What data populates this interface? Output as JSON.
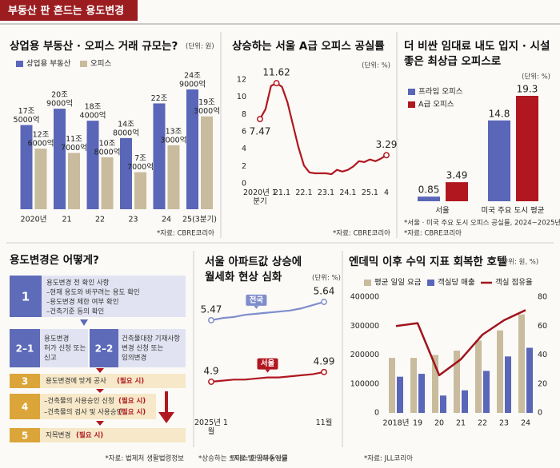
{
  "header": {
    "title": "부동산 판 흔드는 용도변경"
  },
  "chart_data": [
    {
      "type": "bar",
      "title": "상업용 부동산 · 오피스 거래 규모는?",
      "unit": "(단위: 원)",
      "categories": [
        "2020년",
        "21",
        "22",
        "23",
        "24",
        "25(3분기)"
      ],
      "series": [
        {
          "name": "상업용 부동산",
          "color": "#5a66b8",
          "values": [
            17.5,
            20.9,
            18.4,
            14.8,
            22,
            24.9
          ],
          "value_labels": [
            [
              "17조",
              "5000억"
            ],
            [
              "20조",
              "9000억"
            ],
            [
              "18조",
              "4000억"
            ],
            [
              "14조",
              "8000억"
            ],
            [
              "22조"
            ],
            [
              "24조",
              "9000억"
            ]
          ]
        },
        {
          "name": "오피스",
          "color": "#c9bb9d",
          "values": [
            12.6,
            11.7,
            10.8,
            7.7,
            13.3,
            19.3
          ],
          "value_labels": [
            [
              "12조",
              "6000억"
            ],
            [
              "11조",
              "7000억"
            ],
            [
              "10조",
              "8000억"
            ],
            [
              "7조",
              "7000억"
            ],
            [
              "13조",
              "3000억"
            ],
            [
              "19조",
              "3000억"
            ]
          ]
        }
      ],
      "source": "*자료: CBRE코리아"
    },
    {
      "type": "line",
      "title": "상승하는 서울 A급 오피스 공실률",
      "unit": "(단위: %)",
      "categories": [
        "2020년 1분기",
        null,
        null,
        null,
        "21.1",
        null,
        null,
        null,
        "22.1",
        null,
        null,
        null,
        "23.1",
        null,
        null,
        null,
        "24.1",
        null,
        null,
        null,
        "25.1",
        null,
        null,
        "4"
      ],
      "values": [
        7.47,
        8.6,
        11.3,
        11.62,
        11.2,
        9.4,
        6.8,
        4.2,
        2.1,
        1.3,
        1.2,
        1.2,
        1.2,
        1.1,
        1.6,
        1.4,
        1.6,
        2.0,
        2.6,
        2.5,
        2.8,
        2.6,
        2.9,
        3.29
      ],
      "value_labels": [
        "7.47",
        null,
        null,
        "11.62",
        null,
        null,
        null,
        null,
        null,
        null,
        null,
        null,
        null,
        null,
        null,
        null,
        null,
        null,
        null,
        null,
        null,
        null,
        null,
        "3.29"
      ],
      "color": "#b0171f",
      "ylim": [
        0,
        12
      ],
      "yticks": [
        0,
        2,
        4,
        6,
        8,
        10,
        12
      ],
      "source": "*자료: CBRE코리아"
    },
    {
      "type": "bar",
      "title": [
        "더 비싼 임대료 내도 입지 · 시설",
        "좋은 최상급 오피스로"
      ],
      "unit": "(단위: %)",
      "categories": [
        "서울",
        "미국 주요 도시 평균"
      ],
      "series": [
        {
          "name": "프라임 오피스",
          "color": "#5a66b8",
          "values": [
            0.85,
            14.8
          ]
        },
        {
          "name": "A급 오피스",
          "color": "#b0171f",
          "values": [
            3.49,
            19.3
          ]
        }
      ],
      "notes": [
        "*서울 · 미국 주요 도시 오피스 공실률, 2024~2025년",
        "*자료: CBRE코리아"
      ]
    },
    {
      "type": "line",
      "title": [
        "서울 아파트값 상승에",
        "월세화 현상 심화"
      ],
      "unit": "(단위: %)",
      "categories": [
        "2025년 1월",
        null,
        null,
        null,
        null,
        null,
        null,
        null,
        null,
        null,
        "11월"
      ],
      "series": [
        {
          "name": "전국",
          "color": "#7f8dcc",
          "values": [
            5.47,
            5.49,
            5.5,
            5.52,
            5.53,
            5.54,
            5.55,
            5.56,
            5.58,
            5.61,
            5.64
          ],
          "value_labels": [
            "5.47",
            null,
            null,
            null,
            null,
            null,
            null,
            null,
            null,
            null,
            "5.64"
          ]
        },
        {
          "name": "서울",
          "color": "#b0171f",
          "values": [
            4.9,
            4.91,
            4.92,
            4.92,
            4.93,
            4.94,
            4.94,
            4.95,
            4.96,
            4.97,
            4.99
          ],
          "value_labels": [
            "4.9",
            null,
            null,
            null,
            null,
            null,
            null,
            null,
            null,
            null,
            "4.99"
          ]
        }
      ],
      "note": "*상승하는 오피스텔 임대수익률",
      "source": "*자료: 한국부동산원"
    },
    {
      "type": "bar",
      "title": "엔데믹 이후 수익 지표 회복한 호텔",
      "unit": "(단위: 원, %)",
      "categories": [
        "2018년",
        "19",
        "20",
        "21",
        "22",
        "23",
        "24"
      ],
      "series": [
        {
          "name": "평균 일일 요금",
          "color": "#c9bb9d",
          "values": [
            190000,
            190000,
            200000,
            215000,
            250000,
            285000,
            340000
          ]
        },
        {
          "name": "객실당 매출",
          "color": "#5a66b8",
          "values": [
            125000,
            135000,
            60000,
            78000,
            145000,
            195000,
            225000
          ]
        },
        {
          "name": "객실 점유율",
          "type": "line",
          "axis": "y2",
          "color": "#a0141c",
          "values": [
            60,
            62,
            26,
            37,
            54,
            64,
            71
          ]
        }
      ],
      "ylim": [
        0,
        400000
      ],
      "yticks": [
        0,
        100000,
        200000,
        300000,
        400000
      ],
      "y2lim": [
        0,
        80
      ],
      "y2ticks": [
        0,
        20,
        40,
        60,
        80
      ],
      "source": "*자료: JLL코리아"
    }
  ],
  "diagram": {
    "title": "용도변경은 어떻게?",
    "steps": [
      {
        "number": "1",
        "lines": [
          "용도변경 전 확인 사항",
          "–현재 용도와 바꾸려는 용도 확인",
          "–용도변경 제한 여부 확인",
          "–건축기준 등의 확인"
        ]
      },
      {
        "number": "2–1",
        "lines": [
          "용도변경",
          "허가 신청 또는",
          "신고"
        ]
      },
      {
        "number": "2–2",
        "lines": [
          "건축물대장 기재사항",
          "변경 신청 또는",
          "임의변경"
        ]
      },
      {
        "number": "3",
        "lines": [
          "용도변경에 맞게 공사"
        ],
        "notes": [
          "(필요 시)"
        ]
      },
      {
        "number": "4",
        "lines": [
          "–건축물의 사용승인 신청",
          "–건축물의 검사 및 사용승인"
        ],
        "notes": [
          "(필요 시)",
          "(필요 시)"
        ]
      },
      {
        "number": "5",
        "lines": [
          "지목변경"
        ],
        "notes": [
          "(필요 시)"
        ]
      }
    ],
    "source": "*자료: 법제처 생활법령정보"
  }
}
